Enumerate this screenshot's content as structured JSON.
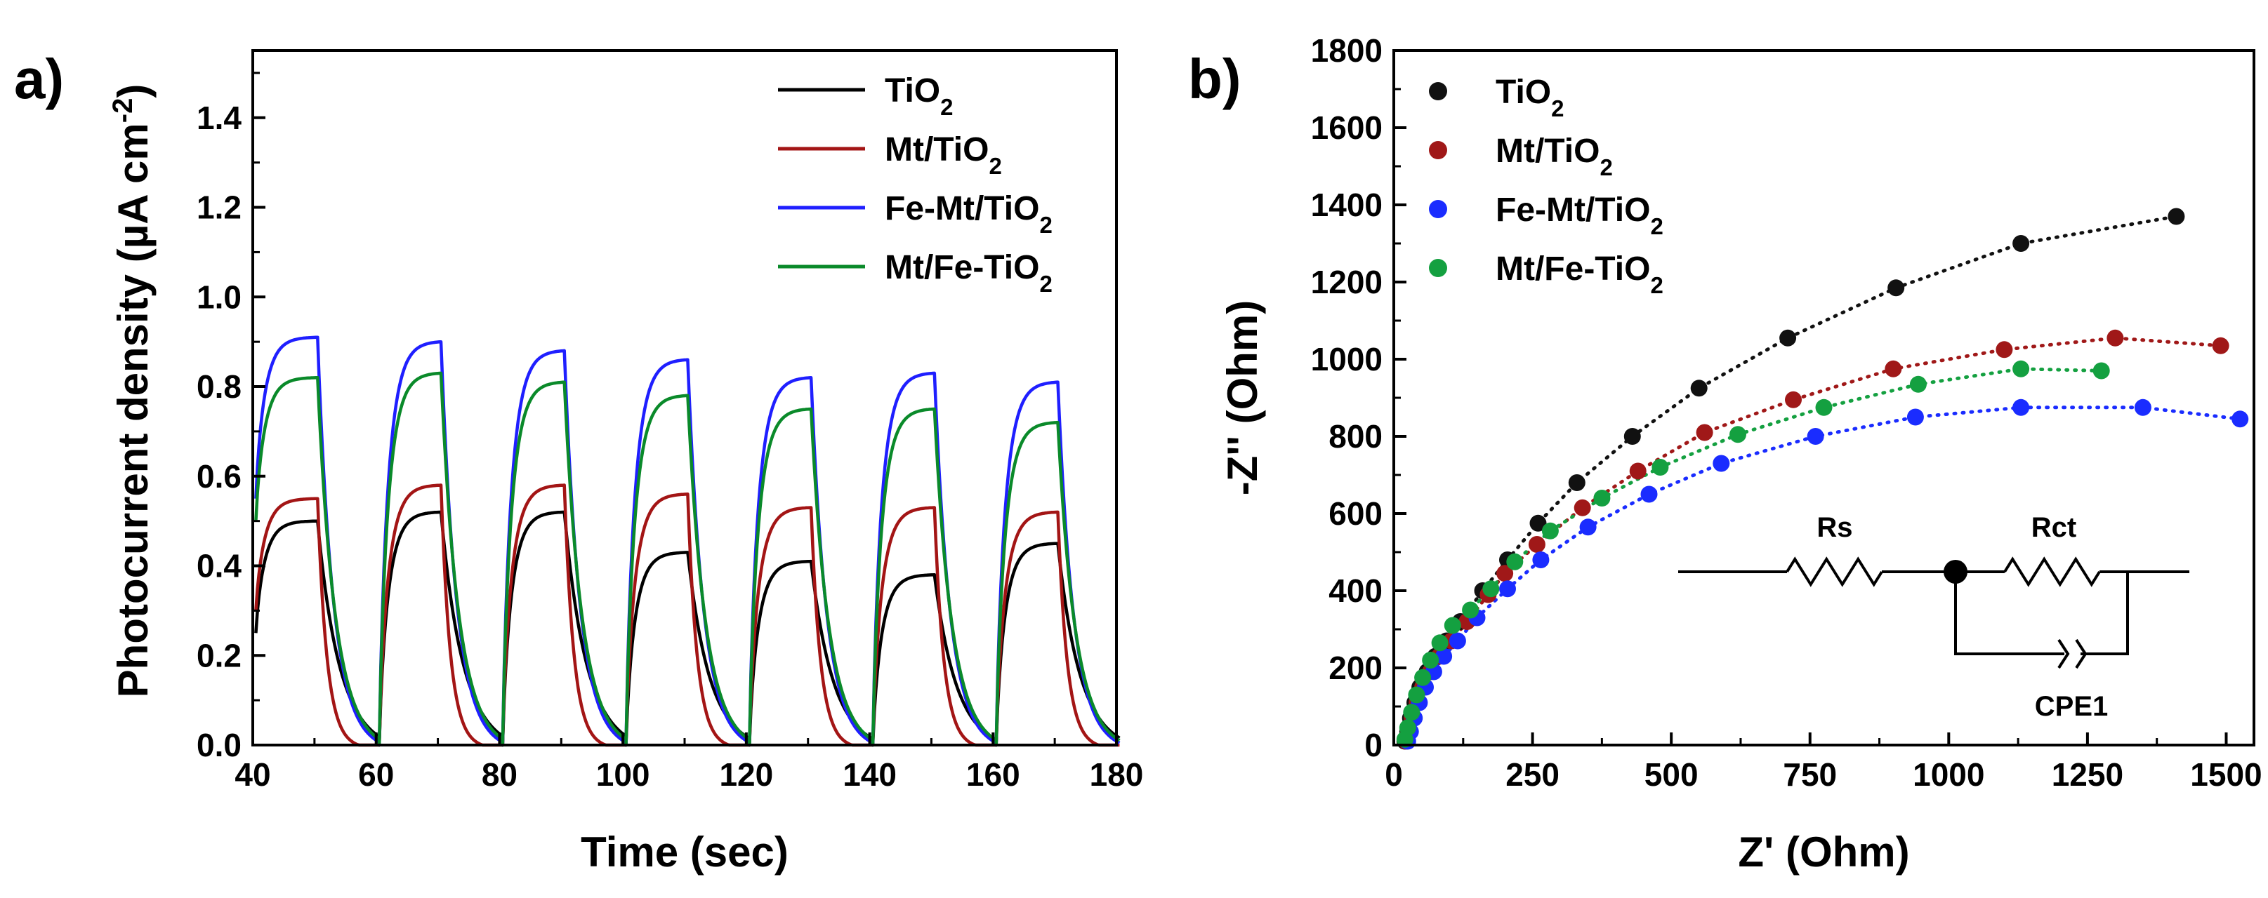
{
  "chart_data": [
    {
      "panel": "a)",
      "type": "line",
      "title": "",
      "xlabel": "Time (sec)",
      "ylabel": "Photocurrent density (µA cm⁻²)",
      "xlim": [
        40,
        180
      ],
      "ylim": [
        0,
        1.55
      ],
      "xticks": [
        40,
        60,
        80,
        100,
        120,
        140,
        160,
        180
      ],
      "yticks": [
        0.0,
        0.2,
        0.4,
        0.6,
        0.8,
        1.0,
        1.2,
        1.4
      ],
      "legend_position": "top-right",
      "light_on": [
        40.5,
        60.5,
        80.5,
        100.5,
        120.5,
        140.5,
        160.5
      ],
      "light_period": 10,
      "series": [
        {
          "name": "TiO₂",
          "color": "#000000",
          "start_level": 0.25,
          "peaks": [
            0.5,
            0.52,
            0.52,
            0.43,
            0.41,
            0.38,
            0.45
          ],
          "decay_tau": 3.5
        },
        {
          "name": "Mt/TiO₂",
          "color": "#a31515",
          "start_level": 0.3,
          "peaks": [
            0.55,
            0.58,
            0.58,
            0.56,
            0.53,
            0.53,
            0.52
          ],
          "decay_tau": 1.5
        },
        {
          "name": "Fe-Mt/TiO₂",
          "color": "#1f1fff",
          "start_level": 0.55,
          "peaks": [
            0.91,
            0.9,
            0.88,
            0.86,
            0.82,
            0.83,
            0.81
          ],
          "decay_tau": 2.5
        },
        {
          "name": "Mt/Fe-TiO₂",
          "color": "#0a8a2a",
          "start_level": 0.5,
          "peaks": [
            0.82,
            0.83,
            0.81,
            0.78,
            0.75,
            0.75,
            0.72
          ],
          "decay_tau": 2.8
        }
      ]
    },
    {
      "panel": "b)",
      "type": "scatter",
      "title": "",
      "xlabel": "Z' (Ohm)",
      "ylabel": "-Z'' (Ohm)",
      "xlim": [
        0,
        1550
      ],
      "ylim": [
        0,
        1800
      ],
      "xticks": [
        0,
        250,
        500,
        750,
        1000,
        1250,
        1500
      ],
      "yticks": [
        0,
        200,
        400,
        600,
        800,
        1000,
        1200,
        1400,
        1600,
        1800
      ],
      "legend_position": "top-left",
      "circuit": {
        "rs_label": "Rs",
        "rct_label": "Rct",
        "cpe_label": "CPE1"
      },
      "series": [
        {
          "name": "TiO₂",
          "color": "#111111",
          "x": [
            20,
            25,
            30,
            38,
            47,
            60,
            75,
            95,
            120,
            160,
            205,
            260,
            330,
            430,
            550,
            710,
            905,
            1130,
            1410
          ],
          "y": [
            10,
            35,
            70,
            110,
            150,
            190,
            230,
            270,
            320,
            400,
            480,
            575,
            680,
            800,
            925,
            1055,
            1185,
            1300,
            1370
          ]
        },
        {
          "name": "Mt/TiO₂",
          "color": "#a01818",
          "x": [
            22,
            27,
            33,
            42,
            52,
            66,
            82,
            104,
            132,
            170,
            200,
            258,
            340,
            440,
            560,
            720,
            900,
            1100,
            1300,
            1490
          ],
          "y": [
            10,
            35,
            70,
            110,
            150,
            190,
            230,
            270,
            320,
            390,
            445,
            520,
            615,
            710,
            810,
            895,
            975,
            1025,
            1055,
            1035
          ]
        },
        {
          "name": "Fe-Mt/TiO₂",
          "color": "#1a2cff",
          "x": [
            25,
            30,
            37,
            46,
            57,
            72,
            90,
            115,
            150,
            205,
            265,
            350,
            460,
            590,
            760,
            940,
            1130,
            1350,
            1525
          ],
          "y": [
            10,
            35,
            70,
            110,
            150,
            190,
            230,
            270,
            330,
            405,
            480,
            565,
            650,
            730,
            800,
            850,
            875,
            875,
            845
          ]
        },
        {
          "name": "Mt/Fe-TiO₂",
          "color": "#14a040",
          "x": [
            20,
            25,
            32,
            41,
            52,
            66,
            83,
            106,
            138,
            175,
            218,
            282,
            375,
            480,
            620,
            775,
            945,
            1130,
            1275
          ],
          "y": [
            15,
            45,
            85,
            130,
            175,
            220,
            265,
            310,
            350,
            405,
            475,
            555,
            640,
            720,
            805,
            875,
            935,
            975,
            970
          ]
        }
      ]
    }
  ]
}
